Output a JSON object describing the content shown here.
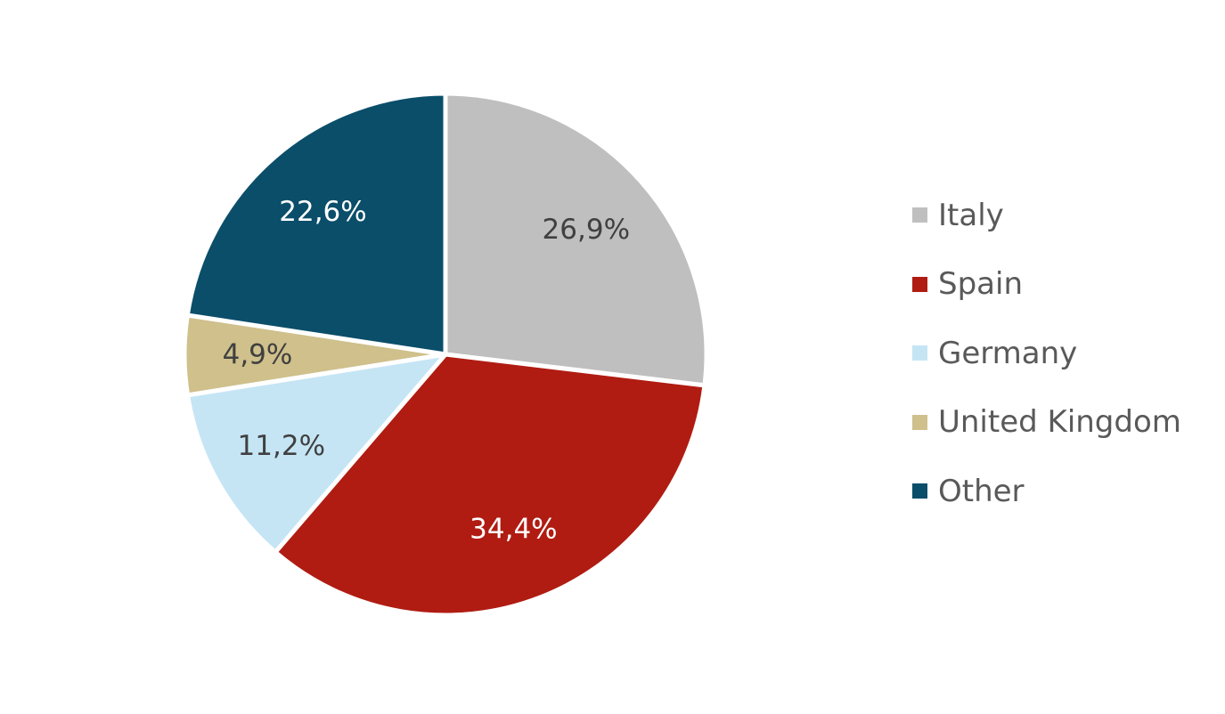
{
  "chart_data": {
    "type": "pie",
    "title": "",
    "start_angle_deg": 0,
    "direction": "clockwise",
    "slices": [
      {
        "label": "Italy",
        "value": 26.9,
        "display": "26,9%",
        "color": "#BFBFBF",
        "label_color": "#404040"
      },
      {
        "label": "Spain",
        "value": 34.4,
        "display": "34,4%",
        "color": "#B01C12",
        "label_color": "#FFFFFF"
      },
      {
        "label": "Germany",
        "value": 11.2,
        "display": "11,2%",
        "color": "#C5E5F5",
        "label_color": "#404040"
      },
      {
        "label": "United Kingdom",
        "value": 4.9,
        "display": "4,9%",
        "color": "#CFC08C",
        "label_color": "#404040"
      },
      {
        "label": "Other",
        "value": 22.6,
        "display": "22,6%",
        "color": "#0A4E6A",
        "label_color": "#FFFFFF"
      }
    ],
    "legend": {
      "position": "right",
      "items": [
        "Italy",
        "Spain",
        "Germany",
        "United Kingdom",
        "Other"
      ]
    }
  }
}
